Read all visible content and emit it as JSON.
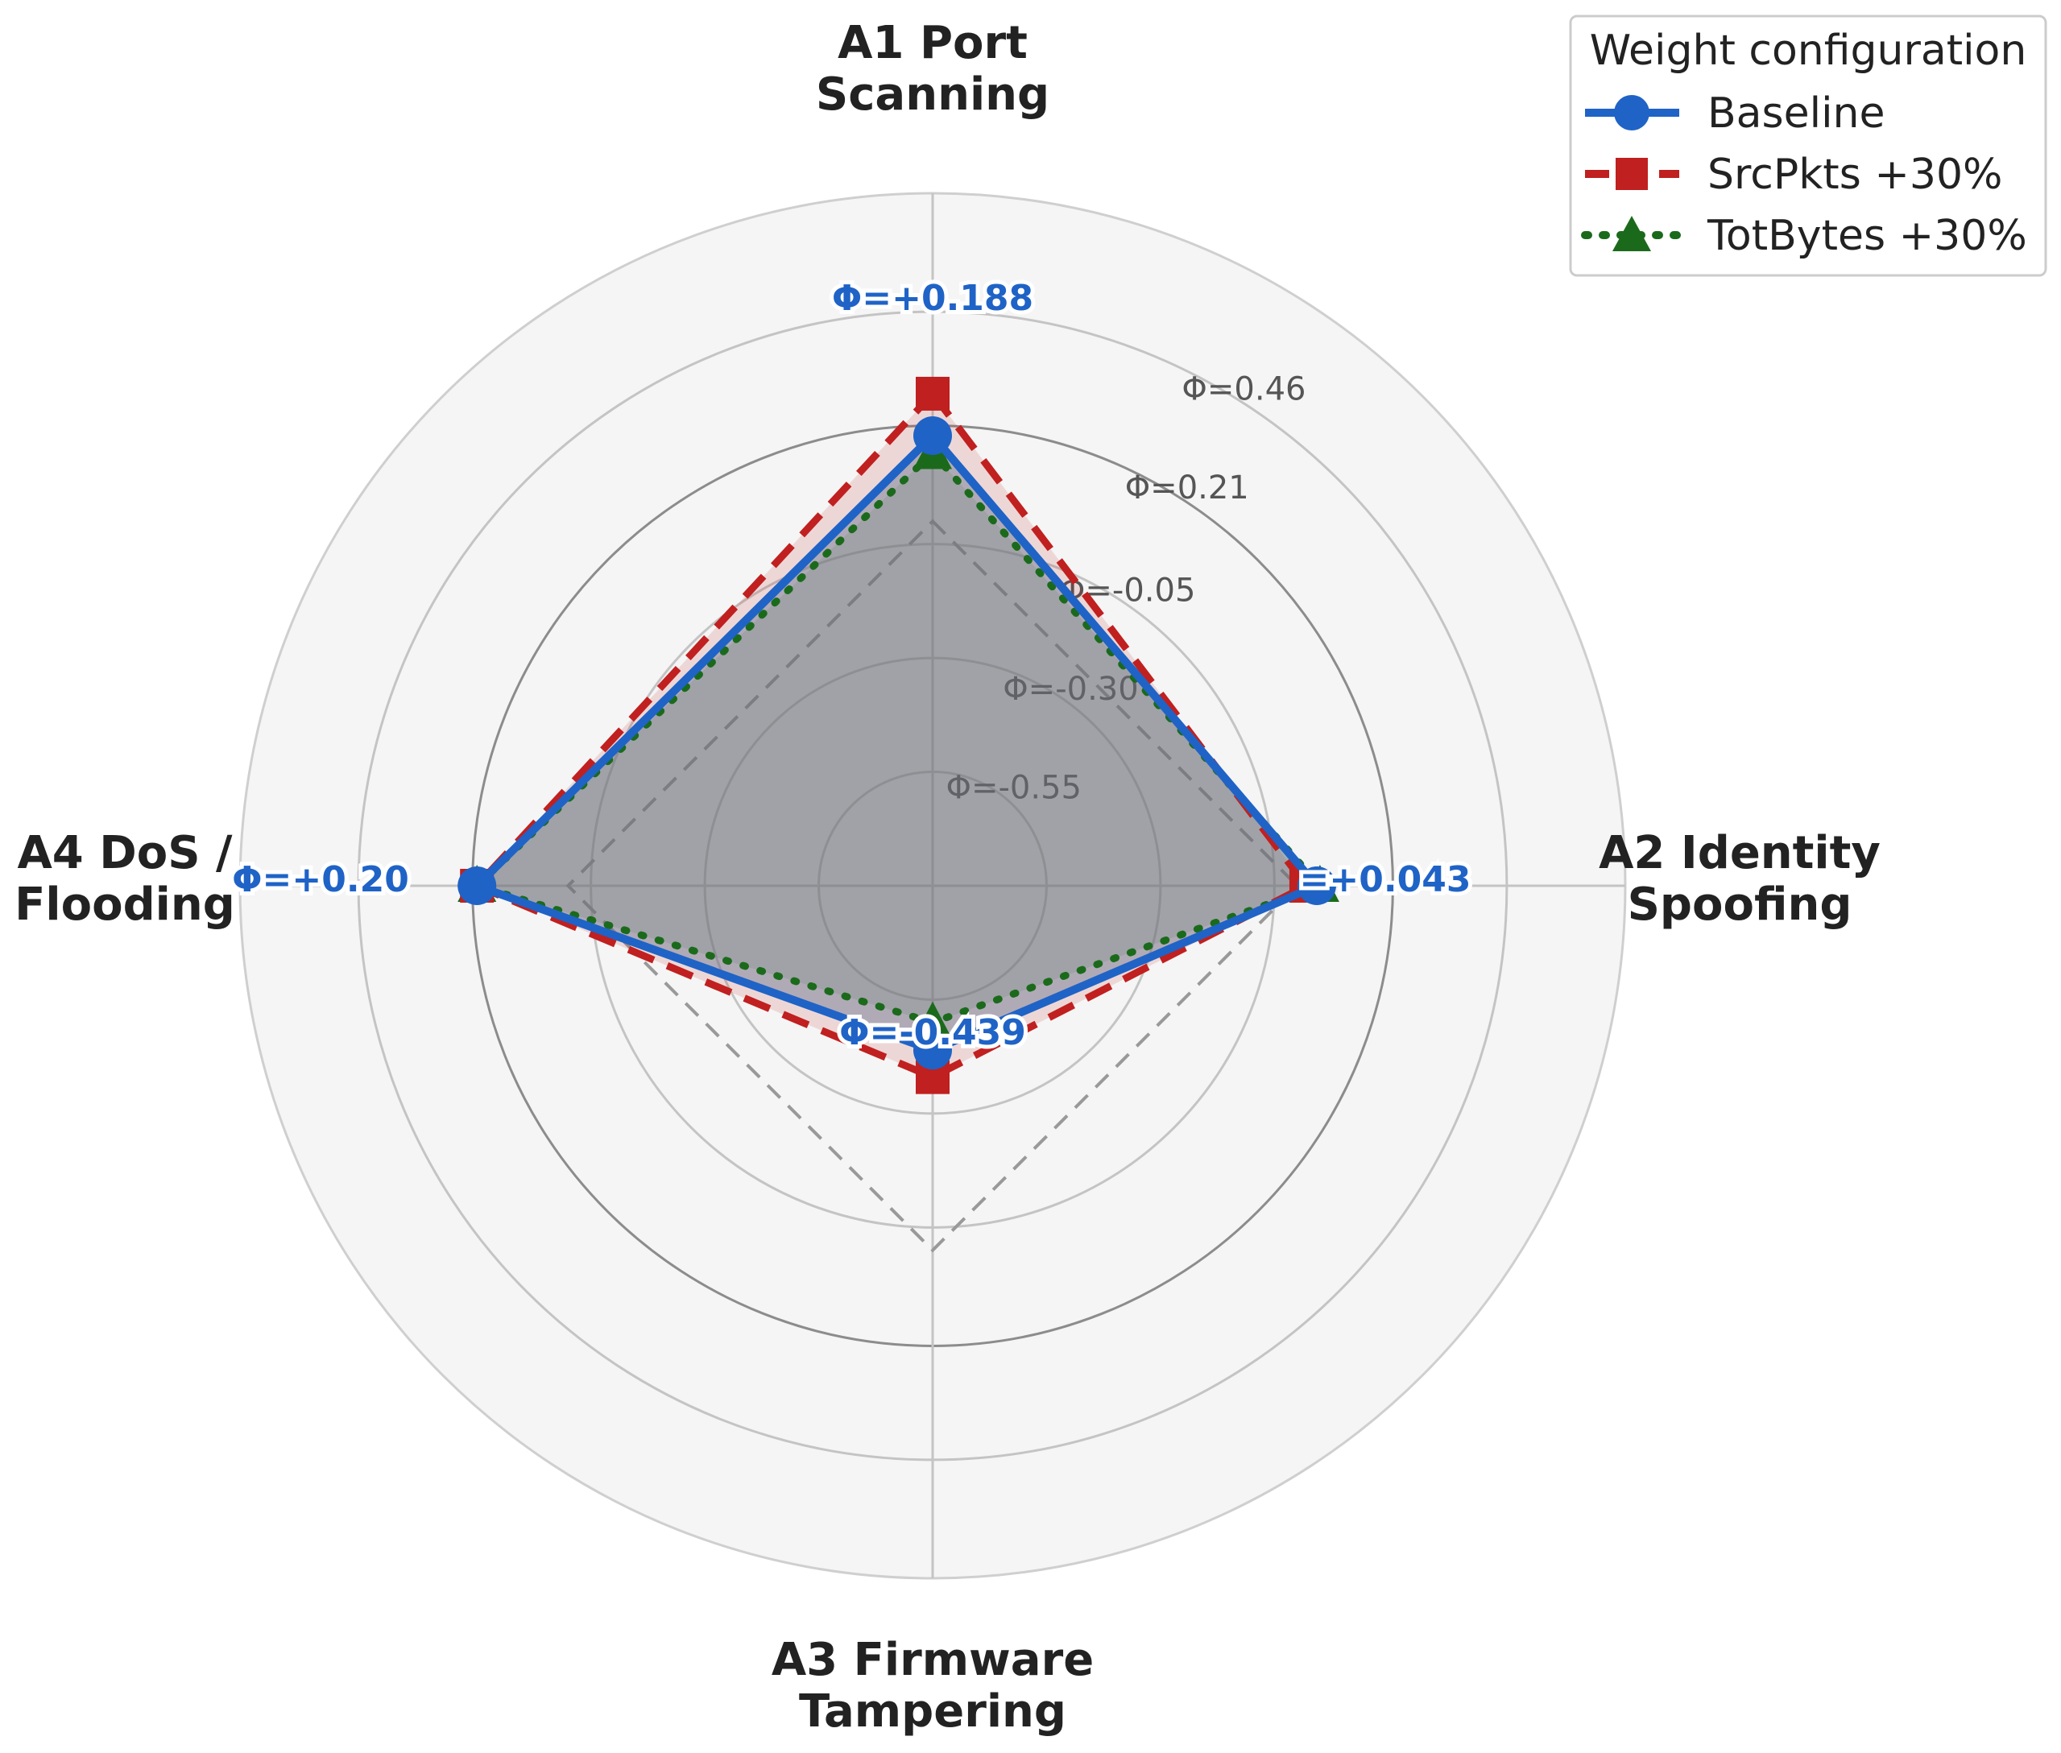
{
  "chart_data": {
    "type": "radar",
    "axes": [
      {
        "key": "A1",
        "label_lines": [
          "A1 Port",
          "Scanning"
        ]
      },
      {
        "key": "A2",
        "label_lines": [
          "A2 Identity",
          "Spoofing"
        ]
      },
      {
        "key": "A3",
        "label_lines": [
          "A3 Firmware",
          "Tampering"
        ]
      },
      {
        "key": "A4",
        "label_lines": [
          "A4 DoS /",
          "Flooding"
        ]
      }
    ],
    "radial_range": [
      -0.8,
      0.72
    ],
    "ring_values": [
      -0.55,
      -0.3,
      -0.05,
      0.21,
      0.46
    ],
    "ring_labels": [
      "Φ=-0.55",
      "Φ=-0.30",
      "Φ=-0.05",
      "Φ=0.21",
      "Φ=0.46"
    ],
    "zero_reference_value": 0.0,
    "series": [
      {
        "name": "Baseline",
        "values": [
          0.188,
          0.043,
          -0.439,
          0.2
        ],
        "color": "#1f63c6",
        "marker": "circle",
        "line": "solid"
      },
      {
        "name": "SrcPkts +30%",
        "values": [
          0.28,
          0.02,
          -0.38,
          0.2
        ],
        "color": "#c0201f",
        "marker": "square",
        "line": "dashed"
      },
      {
        "name": "TotBytes +30%",
        "values": [
          0.15,
          0.05,
          -0.5,
          0.2
        ],
        "color": "#1b6a1b",
        "marker": "triangle",
        "line": "dotted"
      }
    ],
    "value_labels": [
      "Φ=+0.188",
      "=+0.043",
      "Φ=-0.439",
      "Φ=+0.20"
    ],
    "legend": {
      "title": "Weight configuration",
      "placement": "top-right"
    },
    "grid": true
  }
}
